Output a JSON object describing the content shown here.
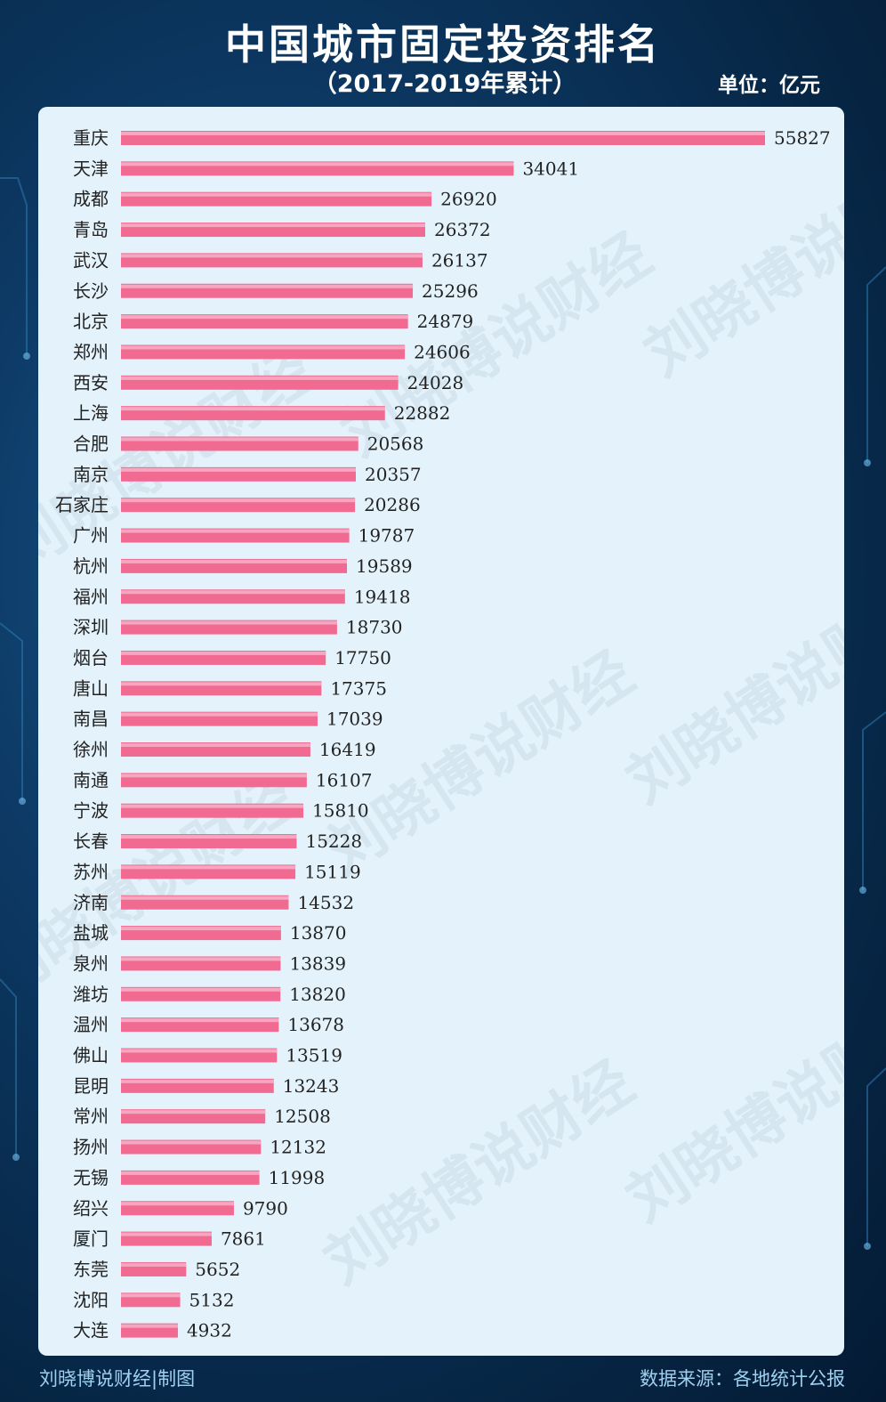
{
  "header": {
    "title": "中国城市固定投资排名",
    "subtitle": "（2017-2019年累计）",
    "unit": "单位：亿元"
  },
  "watermark": "刘晓博说财经",
  "footer": {
    "credit": "刘晓博说财经|制图",
    "source": "数据来源：各地统计公报"
  },
  "colors": {
    "bar": "#f06a92",
    "bar_highlight": "#f7a6bf",
    "panel": "#e4f3fb",
    "label_text": "#222222"
  },
  "chart_data": {
    "type": "bar",
    "orientation": "horizontal",
    "categories": [
      "重庆",
      "天津",
      "成都",
      "青岛",
      "武汉",
      "长沙",
      "北京",
      "郑州",
      "西安",
      "上海",
      "合肥",
      "南京",
      "石家庄",
      "广州",
      "杭州",
      "福州",
      "深圳",
      "烟台",
      "唐山",
      "南昌",
      "徐州",
      "南通",
      "宁波",
      "长春",
      "苏州",
      "济南",
      "盐城",
      "泉州",
      "潍坊",
      "温州",
      "佛山",
      "昆明",
      "常州",
      "扬州",
      "无锡",
      "绍兴",
      "厦门",
      "东莞",
      "沈阳",
      "大连"
    ],
    "values": [
      55827,
      34041,
      26920,
      26372,
      26137,
      25296,
      24879,
      24606,
      24028,
      22882,
      20568,
      20357,
      20286,
      19787,
      19589,
      19418,
      18730,
      17750,
      17375,
      17039,
      16419,
      16107,
      15810,
      15228,
      15119,
      14532,
      13870,
      13839,
      13820,
      13678,
      13519,
      13243,
      12508,
      12132,
      11998,
      9790,
      7861,
      5652,
      5132,
      4932
    ],
    "xlim": [
      0,
      55827
    ],
    "grid": false,
    "legend": "none"
  }
}
